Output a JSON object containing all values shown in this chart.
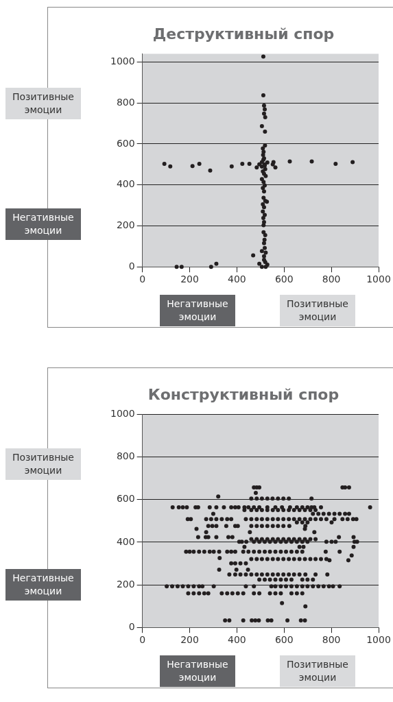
{
  "chart_data": [
    {
      "type": "scatter",
      "title": "Деструктивный спор",
      "annotations": [
        "Позитивные эмоции",
        "Негативные эмоции",
        "Негативные эмоции",
        "Позитивные эмоции"
      ],
      "xlim": [
        0,
        1000
      ],
      "ylim": [
        0,
        1040
      ],
      "xticks": [
        0,
        200,
        400,
        600,
        800,
        1000
      ],
      "yticks": [
        0,
        200,
        400,
        600,
        800,
        1000
      ],
      "grid": "y",
      "marker": "circle",
      "series": [
        {
          "color": "#231f20",
          "x": [
            512,
            512,
            515,
            518,
            515,
            520,
            506,
            519,
            519,
            510,
            513,
            511,
            515,
            93,
            118,
            212,
            241,
            287,
            378,
            423,
            453,
            484,
            495,
            506,
            518,
            529,
            555,
            552,
            563,
            624,
            717,
            818,
            890,
            512,
            518,
            506,
            520,
            510,
            515,
            522,
            506,
            513,
            518,
            510,
            515,
            513,
            520,
            527,
            510,
            515,
            510,
            518,
            512,
            515,
            513,
            513,
            520,
            517,
            515,
            518,
            506,
            522,
            515,
            515,
            520,
            495,
            529,
            506,
            522,
            469,
            145,
            166,
            291,
            313
          ],
          "values": [
            1026,
            837,
            787,
            769,
            748,
            730,
            687,
            660,
            592,
            578,
            561,
            546,
            529,
            503,
            490,
            492,
            503,
            470,
            490,
            503,
            503,
            485,
            500,
            511,
            494,
            509,
            511,
            500,
            485,
            514,
            514,
            503,
            511,
            523,
            500,
            489,
            477,
            466,
            454,
            443,
            428,
            414,
            397,
            385,
            368,
            337,
            322,
            318,
            305,
            291,
            270,
            253,
            238,
            218,
            203,
            169,
            155,
            132,
            115,
            92,
            77,
            69,
            52,
            34,
            23,
            15,
            11,
            0,
            0,
            56,
            0,
            0,
            0,
            15
          ]
        }
      ]
    },
    {
      "type": "scatter",
      "title": "Конструктивный спор",
      "annotations": [
        "Позитивные эмоции",
        "Негативные эмоции",
        "Негативные эмоции",
        "Позитивные эмоции"
      ],
      "xlim": [
        0,
        1000
      ],
      "ylim": [
        0,
        1000
      ],
      "xticks": [
        0,
        200,
        400,
        600,
        800,
        1000
      ],
      "yticks": [
        0,
        200,
        400,
        600,
        800,
        1000
      ],
      "grid": "y",
      "marker": "circle",
      "series": [
        {
          "color": "#231f20",
          "x": [
            472,
            484,
            495,
            847,
            858,
            875,
            480,
            321,
            461,
            484,
            506,
            529,
            551,
            574,
            597,
            620,
            716,
            128,
            154,
            171,
            188,
            225,
            236,
            285,
            313,
            345,
            376,
            393,
            407,
            432,
            449,
            472,
            495,
            529,
            563,
            591,
            625,
            654,
            677,
            699,
            716,
            728,
            756,
            964,
            432,
            461,
            484,
            506,
            529,
            552,
            574,
            597,
            620,
            642,
            665,
            688,
            711,
            733,
            300,
            722,
            745,
            767,
            790,
            813,
            835,
            858,
            875,
            192,
            205,
            270,
            291,
            313,
            336,
            359,
            376,
            438,
            461,
            484,
            506,
            529,
            552,
            574,
            597,
            620,
            642,
            665,
            688,
            711,
            733,
            756,
            779,
            813,
            847,
            869,
            892,
            906,
            654,
            677,
            699,
            801,
            279,
            296,
            313,
            355,
            393,
            404,
            461,
            484,
            506,
            529,
            552,
            574,
            597,
            622,
            690,
            229,
            688,
            270,
            455,
            728,
            236,
            268,
            279,
            313,
            364,
            381,
            832,
            894,
            461,
            484,
            506,
            529,
            552,
            574,
            597,
            620,
            642,
            665,
            688,
            711,
            733,
            410,
            421,
            440,
            472,
            495,
            518,
            540,
            563,
            586,
            608,
            631,
            654,
            677,
            699,
            779,
            801,
            818,
            898,
            909,
            432,
            665,
            682,
            894,
            185,
            200,
            217,
            240,
            262,
            285,
            302,
            325,
            359,
            376,
            393,
            427,
            449,
            472,
            495,
            518,
            540,
            563,
            586,
            608,
            631,
            654,
            677,
            776,
            835,
            886,
            327,
            461,
            484,
            506,
            529,
            552,
            574,
            597,
            620,
            642,
            665,
            688,
            711,
            733,
            756,
            779,
            872,
            792,
            376,
            393,
            415,
            438,
            325,
            398,
            447,
            368,
            393,
            415,
            438,
            461,
            484,
            506,
            529,
            552,
            574,
            597,
            620,
            642,
            665,
            690,
            733,
            783,
            495,
            518,
            540,
            563,
            586,
            608,
            631,
            677,
            699,
            722,
            103,
            126,
            149,
            171,
            194,
            217,
            240,
            254,
            302,
            438,
            472,
            546,
            563,
            586,
            608,
            631,
            654,
            677,
            699,
            722,
            745,
            767,
            790,
            807,
            835,
            194,
            217,
            240,
            262,
            279,
            336,
            359,
            381,
            404,
            427,
            472,
            495,
            540,
            563,
            586,
            631,
            654,
            677,
            591,
            690,
            350,
            368,
            427,
            463,
            478,
            493,
            531,
            546,
            614,
            671,
            688
          ],
          "values": [
            657,
            657,
            657,
            657,
            657,
            657,
            631,
            614,
            605,
            605,
            605,
            605,
            605,
            605,
            605,
            605,
            605,
            564,
            564,
            564,
            564,
            564,
            564,
            564,
            564,
            564,
            564,
            564,
            564,
            564,
            564,
            564,
            564,
            564,
            564,
            564,
            564,
            564,
            564,
            564,
            564,
            564,
            564,
            564,
            551,
            551,
            551,
            551,
            551,
            551,
            551,
            551,
            551,
            551,
            551,
            551,
            551,
            551,
            533,
            533,
            533,
            533,
            533,
            533,
            533,
            533,
            533,
            508,
            508,
            508,
            508,
            508,
            508,
            508,
            508,
            508,
            508,
            508,
            508,
            508,
            508,
            508,
            508,
            508,
            508,
            508,
            508,
            508,
            508,
            508,
            508,
            508,
            508,
            508,
            508,
            508,
            493,
            493,
            493,
            493,
            476,
            476,
            476,
            476,
            476,
            476,
            476,
            476,
            476,
            476,
            476,
            476,
            476,
            476,
            476,
            462,
            462,
            447,
            447,
            447,
            424,
            424,
            424,
            424,
            424,
            424,
            424,
            424,
            414,
            414,
            414,
            414,
            414,
            414,
            414,
            414,
            414,
            414,
            414,
            414,
            414,
            402,
            402,
            402,
            402,
            402,
            402,
            402,
            402,
            402,
            402,
            402,
            402,
            402,
            402,
            402,
            402,
            402,
            402,
            402,
            378,
            378,
            378,
            378,
            355,
            355,
            355,
            355,
            355,
            355,
            355,
            355,
            355,
            355,
            355,
            355,
            355,
            355,
            355,
            355,
            355,
            355,
            355,
            355,
            355,
            355,
            355,
            355,
            355,
            338,
            326,
            321,
            321,
            321,
            321,
            321,
            321,
            321,
            321,
            321,
            321,
            321,
            321,
            321,
            321,
            321,
            315,
            315,
            301,
            301,
            301,
            301,
            271,
            271,
            271,
            248,
            248,
            248,
            248,
            248,
            248,
            248,
            248,
            248,
            248,
            248,
            248,
            248,
            248,
            248,
            248,
            248,
            224,
            224,
            224,
            224,
            224,
            224,
            224,
            224,
            224,
            224,
            193,
            193,
            193,
            193,
            193,
            193,
            193,
            193,
            193,
            193,
            193,
            193,
            193,
            193,
            193,
            193,
            193,
            193,
            193,
            193,
            193,
            193,
            193,
            193,
            193,
            160,
            160,
            160,
            160,
            160,
            160,
            160,
            160,
            160,
            160,
            160,
            160,
            160,
            160,
            160,
            160,
            160,
            160,
            114,
            99,
            33,
            33,
            33,
            33,
            33,
            33,
            33,
            33,
            33,
            33,
            33
          ]
        }
      ]
    }
  ]
}
